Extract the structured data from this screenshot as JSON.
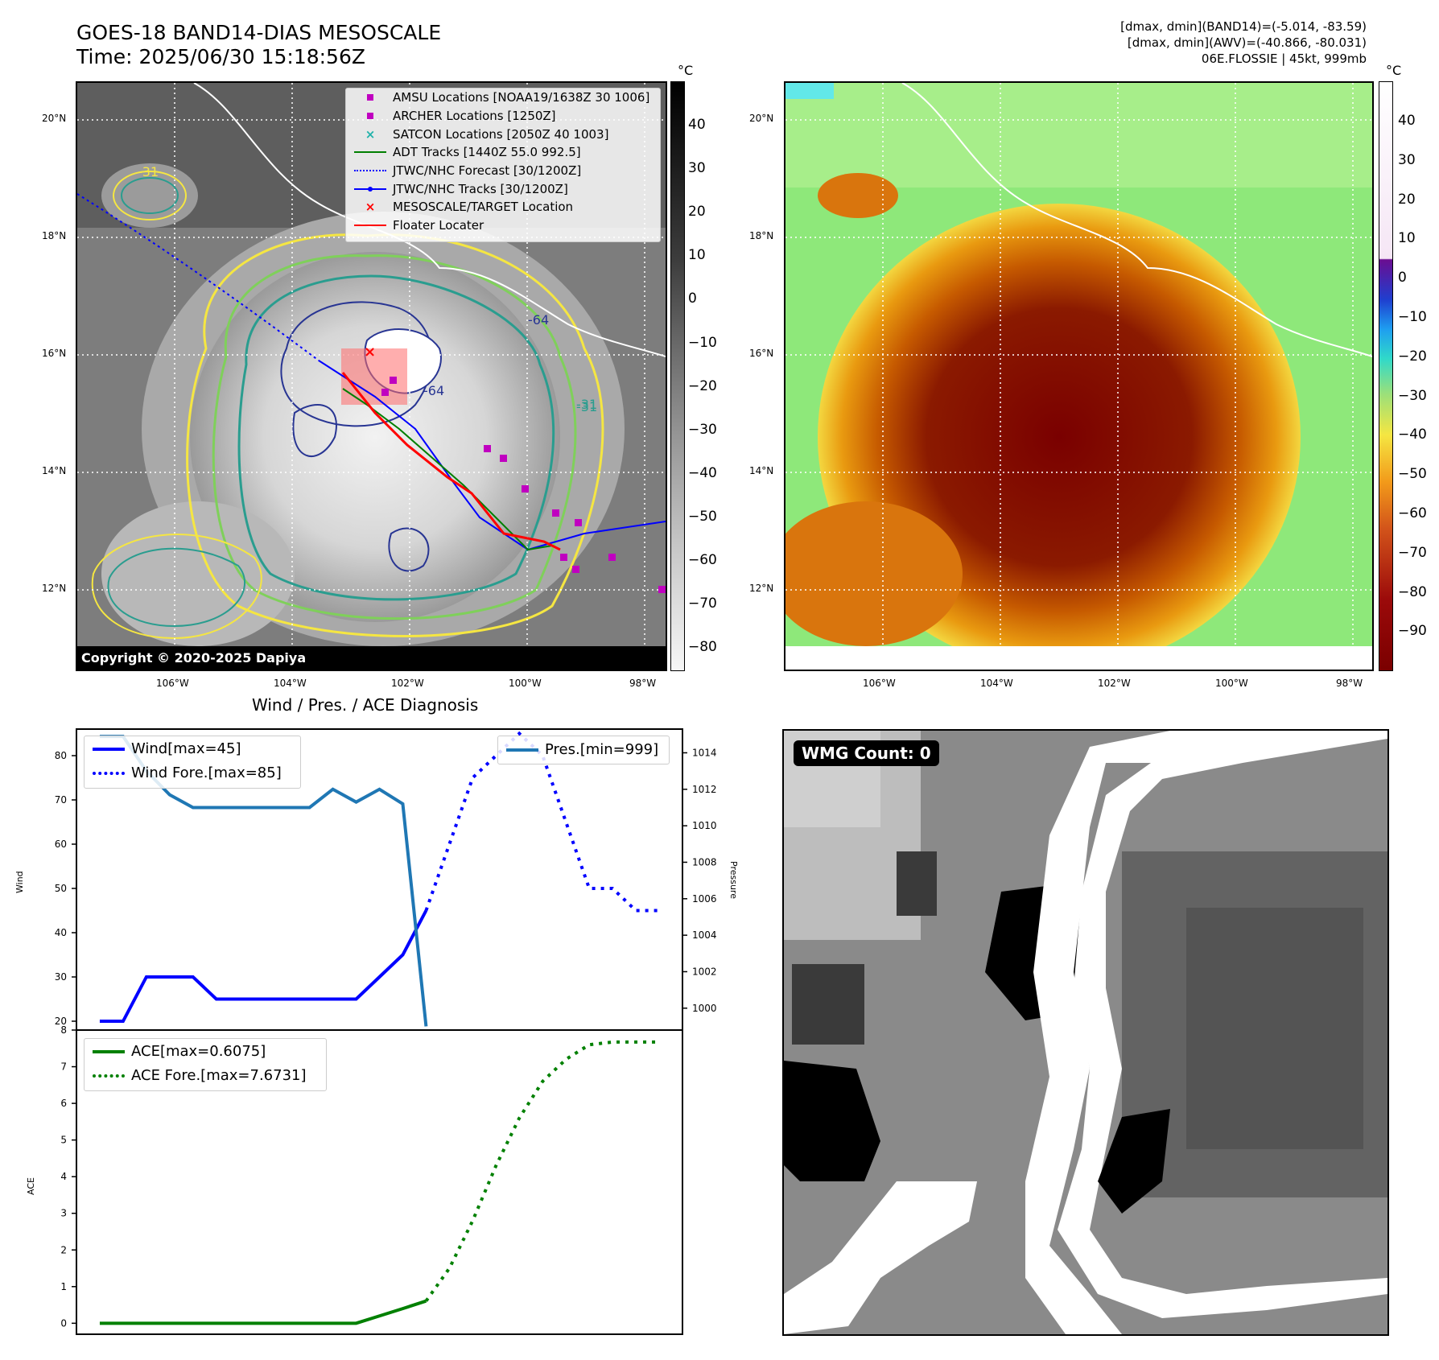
{
  "header": {
    "title_line1": "GOES-18 BAND14-DIAS MESOSCALE",
    "title_line2": "Time: 2025/06/30 15:18:56Z",
    "right_line1": "[dmax, dmin](BAND14)=(-5.014, -83.59)",
    "right_line2": "[dmax, dmin](AWV)=(-40.866, -80.031)",
    "right_line3": "06E.FLOSSIE | 45kt, 999mb"
  },
  "map": {
    "lat_labels": [
      "20°N",
      "18°N",
      "16°N",
      "14°N",
      "12°N"
    ],
    "lon_labels": [
      "106°W",
      "104°W",
      "102°W",
      "100°W",
      "98°W"
    ],
    "copyright": "Copyright © 2020-2025 Dapiya",
    "contour_labels": [
      "-31",
      "-31",
      "-64",
      "-64",
      "-31"
    ],
    "colors": {
      "coast": "#ffffff",
      "contour_outer": "#f5e642",
      "contour_mid": "#7fd05a",
      "contour_inner": "#2a9d8f",
      "contour_core": "#283593"
    }
  },
  "legend_ir": {
    "items": [
      {
        "label": "AMSU Locations [NOAA19/1638Z 30 1006]",
        "symbol": "square",
        "color": "#c000c0"
      },
      {
        "label": "ARCHER Locations [1250Z]",
        "symbol": "square",
        "color": "#c000c0"
      },
      {
        "label": "SATCON Locations [2050Z 40 1003]",
        "symbol": "x",
        "color": "#20b2aa"
      },
      {
        "label": "ADT Tracks [1440Z 55.0 992.5]",
        "symbol": "line",
        "color": "#007f00"
      },
      {
        "label": "JTWC/NHC Forecast [30/1200Z]",
        "symbol": "dotted",
        "color": "#0000ff"
      },
      {
        "label": "JTWC/NHC Tracks [30/1200Z]",
        "symbol": "line-dot",
        "color": "#0000ff"
      },
      {
        "label": "MESOSCALE/TARGET Location",
        "symbol": "x",
        "color": "#ff0000"
      },
      {
        "label": "Floater Locater",
        "symbol": "line",
        "color": "#ff0000"
      }
    ]
  },
  "colorbar_ir": {
    "unit": "°C",
    "ticks": [
      "40",
      "30",
      "20",
      "10",
      "0",
      "−10",
      "−20",
      "−30",
      "−40",
      "−50",
      "−60",
      "−70",
      "−80"
    ]
  },
  "colorbar_awv": {
    "unit": "°C",
    "ticks": [
      "40",
      "30",
      "20",
      "10",
      "0",
      "−10",
      "−20",
      "−30",
      "−40",
      "−50",
      "−60",
      "−70",
      "−80",
      "−90"
    ]
  },
  "wind_panel": {
    "title": "Wind / Pres. / ACE Diagnosis",
    "ylabel": "Wind",
    "ylabel_right": "Pressure",
    "legend_wind": "Wind[max=45]",
    "legend_wind_fore": "Wind Fore.[max=85]",
    "legend_pres": "Pres.[min=999]"
  },
  "ace_panel": {
    "ylabel": "ACE",
    "legend_ace": "ACE[max=0.6075]",
    "legend_ace_fore": "ACE Fore.[max=7.6731]"
  },
  "wmg_panel": {
    "badge": "WMG Count: 0"
  },
  "chart_data": [
    {
      "type": "line",
      "title": "Wind / Pres. / ACE Diagnosis",
      "ylabel": "Wind",
      "ylabel_right": "Pressure",
      "ylim": [
        18,
        86
      ],
      "ylim_right": [
        998.8,
        1015.3
      ],
      "yticks": [
        20,
        30,
        40,
        50,
        60,
        70,
        80
      ],
      "yticks_right": [
        1000,
        1002,
        1004,
        1006,
        1008,
        1010,
        1012,
        1014
      ],
      "series": [
        {
          "name": "Wind[max=45]",
          "axis": "left",
          "style": "solid",
          "color": "#0000ff",
          "x": [
            0,
            1,
            2,
            3,
            4,
            5,
            6,
            7,
            8,
            9,
            10,
            11,
            12,
            13,
            14
          ],
          "values": [
            20,
            20,
            30,
            30,
            30,
            25,
            25,
            25,
            25,
            25,
            25,
            25,
            30,
            35,
            45
          ]
        },
        {
          "name": "Wind Fore.[max=85]",
          "axis": "left",
          "style": "dotted",
          "color": "#0000ff",
          "x": [
            14,
            15,
            16,
            17,
            18,
            19,
            20,
            21,
            22,
            23,
            24
          ],
          "values": [
            45,
            60,
            75,
            80,
            85,
            80,
            65,
            50,
            50,
            45,
            45
          ]
        },
        {
          "name": "Pres.[min=999]",
          "axis": "right",
          "style": "solid",
          "color": "#1f77b4",
          "x": [
            0,
            1,
            2,
            3,
            4,
            5,
            6,
            7,
            8,
            9,
            10,
            11,
            12,
            13,
            14
          ],
          "values": [
            1014.9,
            1014.9,
            1013,
            1011.7,
            1011,
            1011,
            1011,
            1011,
            1011,
            1011,
            1012,
            1011.3,
            1012,
            1011.2,
            999
          ]
        }
      ]
    },
    {
      "type": "line",
      "ylabel": "ACE",
      "ylim": [
        -0.3,
        8
      ],
      "yticks": [
        0,
        1,
        2,
        3,
        4,
        5,
        6,
        7,
        8
      ],
      "series": [
        {
          "name": "ACE[max=0.6075]",
          "style": "solid",
          "color": "#008000",
          "x": [
            0,
            11,
            12,
            13,
            14
          ],
          "values": [
            0,
            0,
            0.2,
            0.4,
            0.6075
          ]
        },
        {
          "name": "ACE Fore.[max=7.6731]",
          "style": "dotted",
          "color": "#008000",
          "x": [
            14,
            15,
            16,
            17,
            18,
            19,
            20,
            21,
            22,
            23,
            24
          ],
          "values": [
            0.6075,
            1.5,
            2.8,
            4.3,
            5.6,
            6.6,
            7.2,
            7.6,
            7.6731,
            7.6731,
            7.6731
          ]
        }
      ]
    }
  ]
}
